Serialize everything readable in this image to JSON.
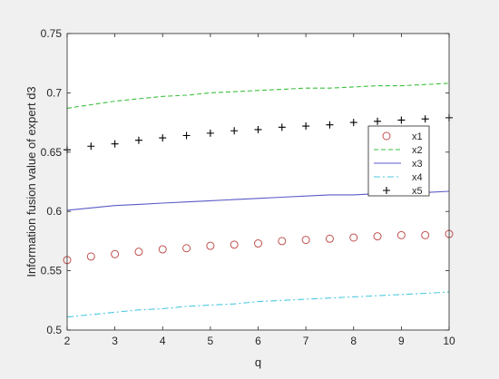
{
  "chart_data": {
    "type": "line",
    "title": "",
    "xlabel": "q",
    "ylabel": "Information fusion value of expert d3",
    "xlim": [
      2,
      10
    ],
    "ylim": [
      0.5,
      0.75
    ],
    "xticks": [
      "2",
      "3",
      "4",
      "5",
      "6",
      "7",
      "8",
      "9",
      "10"
    ],
    "yticks": [
      "0.5",
      "0.55",
      "0.6",
      "0.65",
      "0.7",
      "0.75"
    ],
    "grid": false,
    "legend_position": "right",
    "series": [
      {
        "name": "x1",
        "style": "markers",
        "marker": "circle",
        "color": "#c0504d",
        "x": [
          2,
          2.5,
          3,
          3.5,
          4,
          4.5,
          5,
          5.5,
          6,
          6.5,
          7,
          7.5,
          8,
          8.5,
          9,
          9.5,
          10
        ],
        "y": [
          0.559,
          0.562,
          0.564,
          0.566,
          0.568,
          0.569,
          0.571,
          0.572,
          0.573,
          0.575,
          0.576,
          0.577,
          0.578,
          0.579,
          0.58,
          0.58,
          0.581
        ]
      },
      {
        "name": "x2",
        "style": "dashed",
        "color": "#3dbf3d",
        "x": [
          2,
          2.5,
          3,
          3.5,
          4,
          4.5,
          5,
          5.5,
          6,
          6.5,
          7,
          7.5,
          8,
          8.5,
          9,
          9.5,
          10
        ],
        "y": [
          0.687,
          0.69,
          0.693,
          0.695,
          0.697,
          0.698,
          0.7,
          0.701,
          0.702,
          0.703,
          0.704,
          0.704,
          0.705,
          0.706,
          0.706,
          0.707,
          0.708
        ]
      },
      {
        "name": "x3",
        "style": "solid",
        "color": "#5a5ac8",
        "x": [
          2,
          2.5,
          3,
          3.5,
          4,
          4.5,
          5,
          5.5,
          6,
          6.5,
          7,
          7.5,
          8,
          8.5,
          9,
          9.5,
          10
        ],
        "y": [
          0.601,
          0.603,
          0.605,
          0.606,
          0.607,
          0.608,
          0.609,
          0.61,
          0.611,
          0.612,
          0.613,
          0.614,
          0.614,
          0.615,
          0.616,
          0.616,
          0.617
        ]
      },
      {
        "name": "x4",
        "style": "dashdot",
        "color": "#4cc9e0",
        "x": [
          2,
          2.5,
          3,
          3.5,
          4,
          4.5,
          5,
          5.5,
          6,
          6.5,
          7,
          7.5,
          8,
          8.5,
          9,
          9.5,
          10
        ],
        "y": [
          0.511,
          0.513,
          0.515,
          0.517,
          0.518,
          0.52,
          0.521,
          0.522,
          0.524,
          0.525,
          0.526,
          0.527,
          0.528,
          0.529,
          0.53,
          0.531,
          0.532
        ]
      },
      {
        "name": "x5",
        "style": "markers",
        "marker": "plus",
        "color": "#000000",
        "x": [
          2,
          2.5,
          3,
          3.5,
          4,
          4.5,
          5,
          5.5,
          6,
          6.5,
          7,
          7.5,
          8,
          8.5,
          9,
          9.5,
          10
        ],
        "y": [
          0.652,
          0.655,
          0.657,
          0.66,
          0.662,
          0.664,
          0.666,
          0.668,
          0.669,
          0.671,
          0.672,
          0.673,
          0.675,
          0.676,
          0.677,
          0.678,
          0.679
        ]
      }
    ]
  }
}
